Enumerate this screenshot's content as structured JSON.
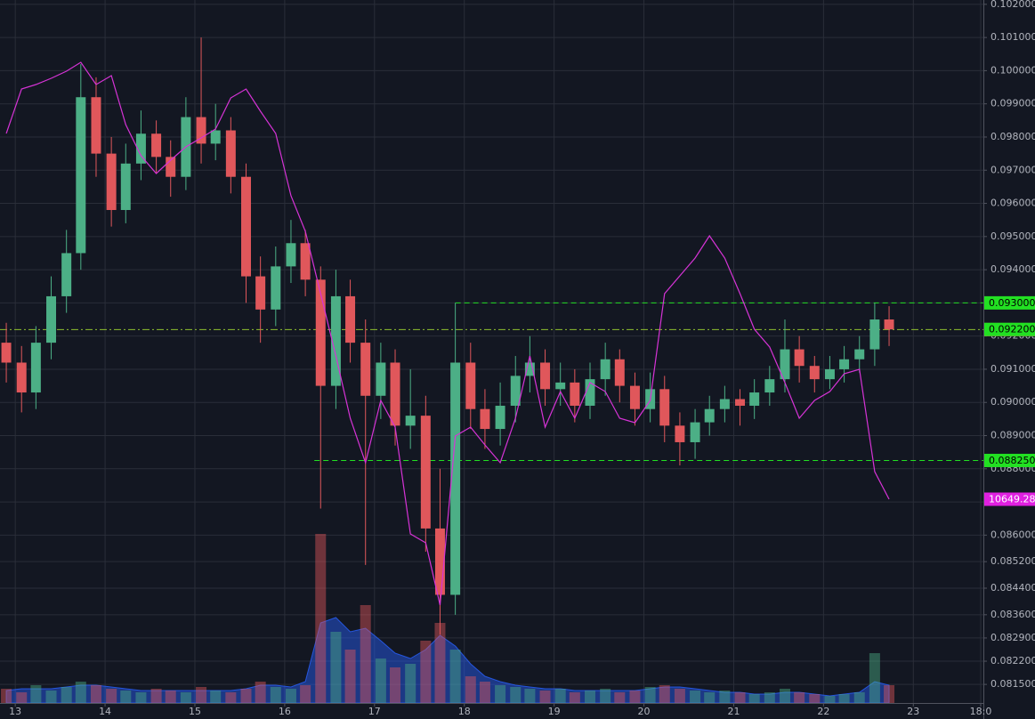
{
  "chart_data": {
    "type": "candlestick",
    "x": [
      12.9,
      13.07,
      13.23,
      13.4,
      13.57,
      13.73,
      13.9,
      14.07,
      14.23,
      14.4,
      14.57,
      14.73,
      14.9,
      15.07,
      15.23,
      15.4,
      15.57,
      15.73,
      15.9,
      16.07,
      16.23,
      16.4,
      16.57,
      16.73,
      16.9,
      17.07,
      17.23,
      17.4,
      17.57,
      17.73,
      17.9,
      18.07,
      18.23,
      18.4,
      18.57,
      18.73,
      18.9,
      19.07,
      19.23,
      19.4,
      19.57,
      19.73,
      19.9,
      20.07,
      20.23,
      20.4,
      20.57,
      20.73,
      20.9,
      21.07,
      21.23,
      21.4,
      21.57,
      21.73,
      21.9,
      22.07,
      22.23,
      22.4,
      22.57,
      22.73
    ],
    "open": [
      0.0918,
      0.0912,
      0.0903,
      0.0918,
      0.0932,
      0.0945,
      0.0992,
      0.0975,
      0.0958,
      0.0972,
      0.0981,
      0.0974,
      0.0968,
      0.0986,
      0.0978,
      0.0982,
      0.0968,
      0.0938,
      0.0928,
      0.0941,
      0.0948,
      0.0937,
      0.0905,
      0.0932,
      0.0918,
      0.0902,
      0.0912,
      0.0893,
      0.0896,
      0.0862,
      0.0842,
      0.0912,
      0.0898,
      0.0892,
      0.0899,
      0.0908,
      0.0912,
      0.0904,
      0.0906,
      0.0899,
      0.0907,
      0.0913,
      0.0905,
      0.0898,
      0.0904,
      0.0893,
      0.0888,
      0.0894,
      0.0898,
      0.0901,
      0.0899,
      0.0903,
      0.0907,
      0.0916,
      0.0911,
      0.0907,
      0.091,
      0.0913,
      0.0916,
      0.0925
    ],
    "high": [
      0.0924,
      0.0917,
      0.0923,
      0.0938,
      0.0952,
      0.1002,
      0.0998,
      0.098,
      0.0978,
      0.0988,
      0.0985,
      0.0979,
      0.0992,
      0.101,
      0.099,
      0.0986,
      0.0972,
      0.0944,
      0.0947,
      0.0955,
      0.0952,
      0.0941,
      0.094,
      0.0937,
      0.0925,
      0.0918,
      0.0916,
      0.091,
      0.0902,
      0.088,
      0.093,
      0.0918,
      0.0904,
      0.0906,
      0.0914,
      0.092,
      0.0916,
      0.0912,
      0.091,
      0.0912,
      0.0918,
      0.0916,
      0.0909,
      0.0909,
      0.0908,
      0.0897,
      0.0898,
      0.0902,
      0.0905,
      0.0904,
      0.0907,
      0.0911,
      0.0925,
      0.092,
      0.0914,
      0.0914,
      0.0917,
      0.092,
      0.093,
      0.0929
    ],
    "low": [
      0.0906,
      0.0897,
      0.0898,
      0.0913,
      0.0927,
      0.094,
      0.0968,
      0.0953,
      0.0954,
      0.0967,
      0.0969,
      0.0962,
      0.0964,
      0.0972,
      0.0973,
      0.0963,
      0.093,
      0.0918,
      0.0923,
      0.0936,
      0.0932,
      0.0868,
      0.0898,
      0.0912,
      0.0851,
      0.0895,
      0.0887,
      0.0886,
      0.0855,
      0.083,
      0.0836,
      0.0892,
      0.0886,
      0.0887,
      0.0894,
      0.0903,
      0.0899,
      0.0899,
      0.0894,
      0.0895,
      0.0902,
      0.09,
      0.0893,
      0.0894,
      0.0888,
      0.0881,
      0.0883,
      0.089,
      0.0894,
      0.0893,
      0.0895,
      0.0899,
      0.0903,
      0.0906,
      0.0903,
      0.0904,
      0.0906,
      0.0909,
      0.0911,
      0.0917
    ],
    "close": [
      0.0912,
      0.0903,
      0.0918,
      0.0932,
      0.0945,
      0.0992,
      0.0975,
      0.0958,
      0.0972,
      0.0981,
      0.0974,
      0.0968,
      0.0986,
      0.0978,
      0.0982,
      0.0968,
      0.0938,
      0.0928,
      0.0941,
      0.0948,
      0.0937,
      0.0905,
      0.0932,
      0.0918,
      0.0902,
      0.0912,
      0.0893,
      0.0896,
      0.0862,
      0.0842,
      0.0912,
      0.0898,
      0.0892,
      0.0899,
      0.0908,
      0.0912,
      0.0904,
      0.0906,
      0.0899,
      0.0907,
      0.0913,
      0.0905,
      0.0898,
      0.0904,
      0.0893,
      0.0888,
      0.0894,
      0.0898,
      0.0901,
      0.0899,
      0.0903,
      0.0907,
      0.0916,
      0.0911,
      0.0907,
      0.091,
      0.0913,
      0.0916,
      0.0925,
      0.0922
    ],
    "up_color": "#4caf86",
    "down_color": "#e0575b",
    "xlim": [
      12.83,
      23.78
    ],
    "xticks": [
      13,
      14,
      15,
      16,
      17,
      18,
      19,
      20,
      21,
      22,
      23,
      {
        "value": 23.75,
        "label": "18:0"
      }
    ],
    "ylim": [
      0.08094,
      0.10213
    ],
    "yticks": [
      {
        "value": 0.102,
        "label": "0.102000"
      },
      {
        "value": 0.101,
        "label": "0.101000"
      },
      {
        "value": 0.1,
        "label": "0.100000"
      },
      {
        "value": 0.099,
        "label": "0.099000"
      },
      {
        "value": 0.098,
        "label": "0.098000"
      },
      {
        "value": 0.097,
        "label": "0.097000"
      },
      {
        "value": 0.096,
        "label": "0.096000"
      },
      {
        "value": 0.095,
        "label": "0.095000"
      },
      {
        "value": 0.094,
        "label": "0.094000"
      },
      {
        "value": 0.093,
        "label": "0.093000"
      },
      {
        "value": 0.092,
        "label": "0.092000"
      },
      {
        "value": 0.091,
        "label": "0.091000"
      },
      {
        "value": 0.09,
        "label": "0.090000"
      },
      {
        "value": 0.089,
        "label": "0.089000"
      },
      {
        "value": 0.088,
        "label": "0.088000"
      },
      {
        "value": 0.087,
        "label": "0.087000"
      },
      {
        "value": 0.086,
        "label": "0.086000"
      },
      {
        "value": 0.0852,
        "label": "0.085200"
      },
      {
        "value": 0.0844,
        "label": "0.084400"
      },
      {
        "value": 0.0836,
        "label": "0.083600"
      },
      {
        "value": 0.0829,
        "label": "0.082900"
      },
      {
        "value": 0.0822,
        "label": "0.082200"
      },
      {
        "value": 0.0815,
        "label": "0.081500"
      }
    ],
    "grid": true,
    "volume": {
      "values": [
        8,
        6,
        10,
        7,
        9,
        12,
        10,
        8,
        7,
        6,
        8,
        7,
        6,
        9,
        7,
        6,
        8,
        12,
        9,
        8,
        10,
        95,
        40,
        30,
        55,
        25,
        20,
        22,
        35,
        45,
        30,
        15,
        12,
        10,
        9,
        8,
        7,
        8,
        6,
        7,
        8,
        6,
        7,
        9,
        10,
        8,
        7,
        6,
        7,
        6,
        5,
        6,
        8,
        6,
        5,
        4,
        5,
        6,
        28,
        10
      ],
      "ma": [
        7,
        8,
        8,
        8,
        9,
        10,
        10,
        9,
        8,
        7,
        7,
        7,
        7,
        7,
        7,
        7,
        8,
        10,
        10,
        9,
        12,
        45,
        48,
        40,
        42,
        35,
        28,
        25,
        30,
        38,
        32,
        22,
        15,
        12,
        10,
        9,
        8,
        8,
        7,
        7,
        7,
        7,
        7,
        8,
        9,
        9,
        8,
        7,
        6,
        6,
        5,
        5,
        6,
        6,
        5,
        4,
        5,
        6,
        12,
        10
      ],
      "ma_color": "#2962ff",
      "lim": [
        0,
        100
      ]
    },
    "overlay": {
      "axis": "y2",
      "color": "#d633d6",
      "values": [
        11553.5,
        11663.5,
        11674.5,
        11689.9,
        11707.5,
        11729.5,
        11674.5,
        11696.5,
        11575.5,
        11498.5,
        11454.5,
        11487.5,
        11520.5,
        11542.5,
        11564.5,
        11641.5,
        11663.5,
        11608.5,
        11553.5,
        11399.5,
        11311.5,
        11157.5,
        11003.5,
        10849.5,
        10739.5,
        10893.5,
        10827.5,
        10563.5,
        10541.5,
        10387.5,
        10805.5,
        10827.5,
        10783.5,
        10739.5,
        10849.5,
        11003.5,
        10827.5,
        10915.5,
        10849.5,
        10937.5,
        10915.5,
        10849.5,
        10838.5,
        10893.5,
        11157.5,
        11201.5,
        11245.5,
        11300.5,
        11245.5,
        11157.5,
        11069.5,
        11025.5,
        10937.5,
        10849.5,
        10893.5,
        10915.5,
        10959.5,
        10970.5,
        10717.5,
        10649.28
      ]
    },
    "y2lim": [
      10145.5,
      11883.5
    ],
    "price_lines": [
      {
        "value": 0.093,
        "label": "0.093000",
        "color": "#22e022",
        "dash": "6,4",
        "x_start": 17.9,
        "text_color": "#000000"
      },
      {
        "value": 0.092194,
        "label": "0.092194",
        "color": "#e0575b",
        "dash": "8,3,2,3",
        "x_start": 12.83,
        "line_color": "#8fbf2f",
        "text_color": "#ffffff"
      },
      {
        "value": 0.08825,
        "label": "0.088250",
        "color": "#22e022",
        "dash": "6,4",
        "x_start": 16.33,
        "text_color": "#000000"
      }
    ],
    "markers": [
      {
        "value": 0.0922,
        "label": "0.092200",
        "color": "#22e022",
        "text_color": "#000000"
      },
      {
        "value": 10649.28,
        "axis": "y2",
        "color": "#e020e0",
        "text_color": "#ffffff"
      }
    ]
  }
}
